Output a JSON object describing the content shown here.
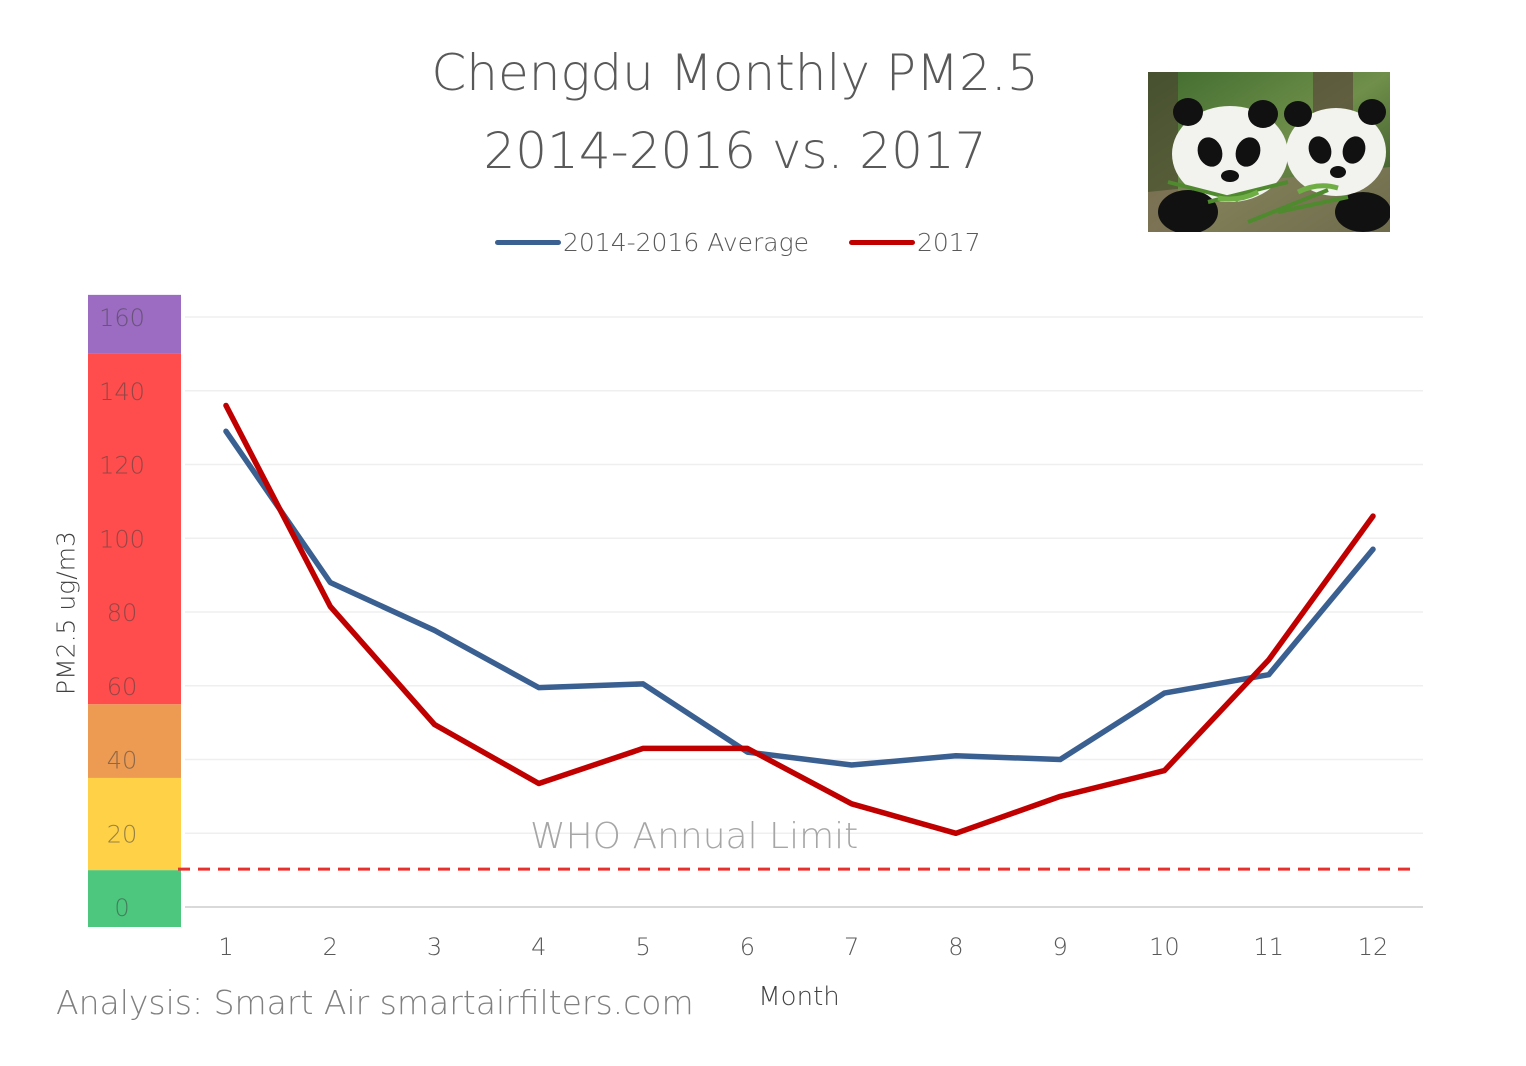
{
  "title_line1": "Chengdu Monthly PM2.5",
  "title_line2": "2014-2016 vs. 2017",
  "photo": {
    "icon": "two-pandas-photo"
  },
  "credit": "Analysis: Smart Air smartairfilters.com",
  "chart_data": {
    "type": "line",
    "title": "Chengdu Monthly PM2.5 2014-2016 vs. 2017",
    "xlabel": "Month",
    "ylabel": "PM2.5 ug/m3",
    "x": [
      1,
      2,
      3,
      4,
      5,
      6,
      7,
      8,
      9,
      10,
      11,
      12
    ],
    "x_tick_labels": [
      "1",
      "2",
      "3",
      "4",
      "5",
      "6",
      "7",
      "8",
      "9",
      "10",
      "11",
      "12"
    ],
    "ylim": [
      0,
      160
    ],
    "y_ticks": [
      0,
      20,
      40,
      60,
      80,
      100,
      120,
      140,
      160
    ],
    "y_tick_labels": [
      "0",
      "20",
      "40",
      "60",
      "80",
      "100",
      "120",
      "140",
      "160"
    ],
    "grid": "horizontal",
    "legend_position": "top",
    "series": [
      {
        "name": "2014-2016 Average",
        "color": "#3a5f91",
        "values": [
          129,
          88,
          75,
          59.5,
          60.5,
          42,
          38.5,
          41,
          40,
          58,
          63,
          97
        ]
      },
      {
        "name": "2017",
        "color": "#c00000",
        "values": [
          136,
          81.5,
          49.5,
          33.5,
          43,
          43,
          28,
          20,
          30,
          37,
          67,
          106
        ]
      }
    ],
    "aqi_bands": [
      {
        "from": 0,
        "to": 10,
        "color": "#4dc77e"
      },
      {
        "from": 10,
        "to": 35,
        "color": "#ffd147"
      },
      {
        "from": 35,
        "to": 55,
        "color": "#ed9a52"
      },
      {
        "from": 55,
        "to": 150,
        "color": "#ff4d4d"
      },
      {
        "from": 150,
        "to": 166,
        "color": "#9b6cc1"
      }
    ],
    "reference_line": {
      "label": "WHO Annual Limit",
      "value": 10,
      "color": "#e8302e",
      "style": "dashed"
    }
  }
}
